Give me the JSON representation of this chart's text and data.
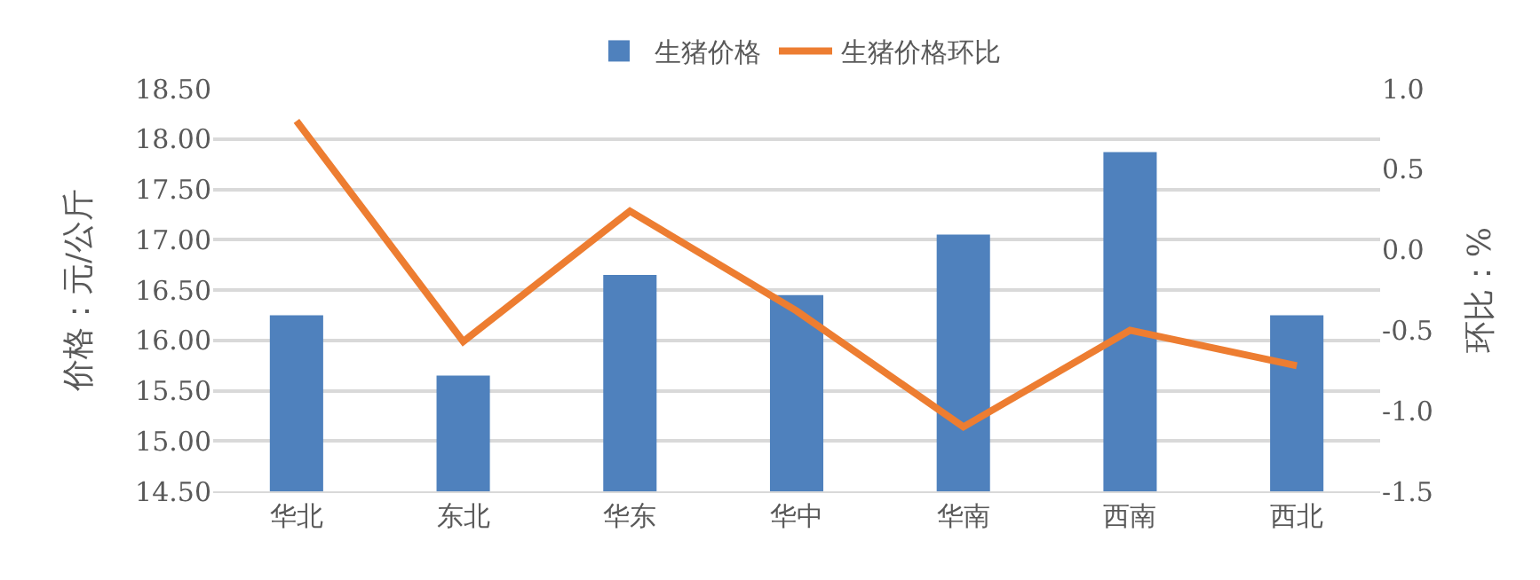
{
  "chart_data": {
    "type": "bar",
    "categories": [
      "华北",
      "东北",
      "华东",
      "华中",
      "华南",
      "西南",
      "西北"
    ],
    "series": [
      {
        "name": "生猪价格",
        "color": "#4f81bd",
        "values": [
          16.25,
          15.65,
          16.65,
          16.45,
          17.05,
          17.87,
          16.25
        ]
      },
      {
        "name": "生猪价格环比",
        "type": "line",
        "axis": "y2",
        "color": "#ed7d31",
        "marker": "none",
        "line_style": "solid",
        "values": [
          0.8,
          -0.57,
          0.24,
          -0.38,
          -1.1,
          -0.5,
          -0.72
        ]
      }
    ],
    "ylabel": "价格：元/公斤",
    "y2label": "环比：%",
    "ylim": [
      14.5,
      18.5
    ],
    "yticks": [
      {
        "value": 14.5,
        "label": "14.50"
      },
      {
        "value": 15,
        "label": "15.00"
      },
      {
        "value": 15.5,
        "label": "15.50"
      },
      {
        "value": 16,
        "label": "16.00"
      },
      {
        "value": 16.5,
        "label": "16.50"
      },
      {
        "value": 17,
        "label": "17.00"
      },
      {
        "value": 17.5,
        "label": "17.50"
      },
      {
        "value": 18,
        "label": "18.00"
      },
      {
        "value": 18.5,
        "label": "18.50"
      }
    ],
    "y2lim": [
      -1.5,
      1.0
    ],
    "y2ticks": [
      {
        "value": -1.5,
        "label": "-1.5"
      },
      {
        "value": -1,
        "label": "-1.0"
      },
      {
        "value": -0.5,
        "label": "-0.5"
      },
      {
        "value": 0,
        "label": "0.0"
      },
      {
        "value": 0.5,
        "label": "0.5"
      },
      {
        "value": 1,
        "label": "1.0"
      }
    ],
    "grid": "y",
    "legend": "top"
  }
}
